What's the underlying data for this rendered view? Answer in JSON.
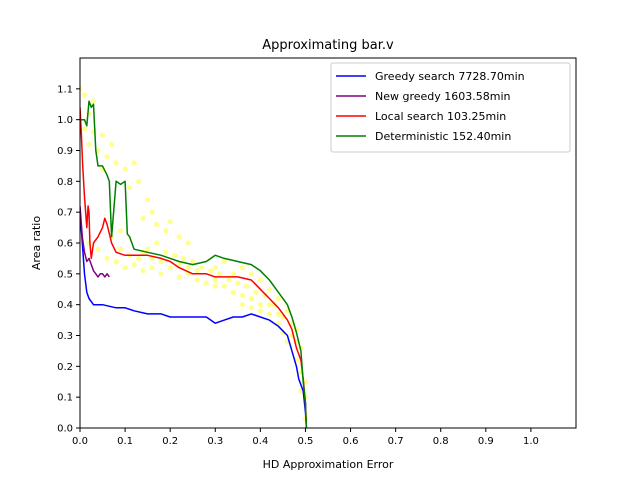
{
  "chart_data": {
    "type": "line",
    "title": "Approximating bar.v",
    "xlabel": "HD Approximation Error",
    "ylabel": "Area ratio",
    "xlim": [
      0.0,
      1.1
    ],
    "ylim": [
      0.0,
      1.2
    ],
    "xticks": [
      "0.0",
      "0.1",
      "0.2",
      "0.3",
      "0.4",
      "0.5",
      "0.6",
      "0.7",
      "0.8",
      "0.9",
      "1.0"
    ],
    "yticks": [
      "0.0",
      "0.1",
      "0.2",
      "0.3",
      "0.4",
      "0.5",
      "0.6",
      "0.7",
      "0.8",
      "0.9",
      "1.0",
      "1.1"
    ],
    "grid": false,
    "legend_position": "top-right",
    "series": [
      {
        "name": "Greedy search 7728.70min",
        "color": "#0000ff",
        "points": [
          [
            0.0,
            0.7
          ],
          [
            0.005,
            0.6
          ],
          [
            0.01,
            0.5
          ],
          [
            0.015,
            0.44
          ],
          [
            0.02,
            0.42
          ],
          [
            0.03,
            0.4
          ],
          [
            0.05,
            0.4
          ],
          [
            0.08,
            0.39
          ],
          [
            0.1,
            0.39
          ],
          [
            0.12,
            0.38
          ],
          [
            0.15,
            0.37
          ],
          [
            0.18,
            0.37
          ],
          [
            0.2,
            0.36
          ],
          [
            0.25,
            0.36
          ],
          [
            0.28,
            0.36
          ],
          [
            0.29,
            0.35
          ],
          [
            0.3,
            0.34
          ],
          [
            0.32,
            0.35
          ],
          [
            0.34,
            0.36
          ],
          [
            0.36,
            0.36
          ],
          [
            0.38,
            0.37
          ],
          [
            0.4,
            0.36
          ],
          [
            0.42,
            0.35
          ],
          [
            0.44,
            0.33
          ],
          [
            0.46,
            0.3
          ],
          [
            0.47,
            0.25
          ],
          [
            0.48,
            0.2
          ],
          [
            0.485,
            0.16
          ],
          [
            0.49,
            0.14
          ],
          [
            0.495,
            0.12
          ],
          [
            0.5,
            0.05
          ],
          [
            0.502,
            0.0
          ]
        ]
      },
      {
        "name": "New greedy 1603.58min",
        "color": "#800080",
        "points": [
          [
            0.0,
            0.72
          ],
          [
            0.005,
            0.62
          ],
          [
            0.01,
            0.57
          ],
          [
            0.015,
            0.54
          ],
          [
            0.02,
            0.55
          ],
          [
            0.025,
            0.53
          ],
          [
            0.03,
            0.51
          ],
          [
            0.035,
            0.5
          ],
          [
            0.04,
            0.49
          ],
          [
            0.045,
            0.5
          ],
          [
            0.05,
            0.5
          ],
          [
            0.055,
            0.49
          ],
          [
            0.06,
            0.5
          ],
          [
            0.065,
            0.49
          ]
        ]
      },
      {
        "name": "Local search 103.25min",
        "color": "#ff0000",
        "points": [
          [
            0.0,
            1.04
          ],
          [
            0.003,
            0.95
          ],
          [
            0.006,
            0.85
          ],
          [
            0.01,
            0.75
          ],
          [
            0.015,
            0.65
          ],
          [
            0.018,
            0.72
          ],
          [
            0.02,
            0.7
          ],
          [
            0.022,
            0.6
          ],
          [
            0.025,
            0.55
          ],
          [
            0.03,
            0.6
          ],
          [
            0.04,
            0.62
          ],
          [
            0.05,
            0.65
          ],
          [
            0.055,
            0.68
          ],
          [
            0.06,
            0.66
          ],
          [
            0.07,
            0.6
          ],
          [
            0.08,
            0.57
          ],
          [
            0.1,
            0.56
          ],
          [
            0.12,
            0.56
          ],
          [
            0.15,
            0.56
          ],
          [
            0.18,
            0.55
          ],
          [
            0.2,
            0.54
          ],
          [
            0.22,
            0.52
          ],
          [
            0.25,
            0.5
          ],
          [
            0.28,
            0.5
          ],
          [
            0.3,
            0.49
          ],
          [
            0.32,
            0.49
          ],
          [
            0.35,
            0.49
          ],
          [
            0.38,
            0.48
          ],
          [
            0.4,
            0.45
          ],
          [
            0.42,
            0.42
          ],
          [
            0.44,
            0.39
          ],
          [
            0.46,
            0.35
          ],
          [
            0.47,
            0.32
          ],
          [
            0.48,
            0.26
          ],
          [
            0.49,
            0.22
          ],
          [
            0.495,
            0.16
          ],
          [
            0.5,
            0.08
          ],
          [
            0.502,
            0.0
          ]
        ]
      },
      {
        "name": "Deterministic 152.40min",
        "color": "#008000",
        "points": [
          [
            0.0,
            1.0
          ],
          [
            0.01,
            1.0
          ],
          [
            0.015,
            0.98
          ],
          [
            0.02,
            1.06
          ],
          [
            0.025,
            1.04
          ],
          [
            0.03,
            1.05
          ],
          [
            0.035,
            0.9
          ],
          [
            0.04,
            0.85
          ],
          [
            0.05,
            0.85
          ],
          [
            0.06,
            0.82
          ],
          [
            0.065,
            0.8
          ],
          [
            0.07,
            0.62
          ],
          [
            0.08,
            0.8
          ],
          [
            0.09,
            0.79
          ],
          [
            0.1,
            0.8
          ],
          [
            0.105,
            0.63
          ],
          [
            0.11,
            0.62
          ],
          [
            0.12,
            0.58
          ],
          [
            0.15,
            0.57
          ],
          [
            0.18,
            0.56
          ],
          [
            0.2,
            0.55
          ],
          [
            0.22,
            0.54
          ],
          [
            0.25,
            0.53
          ],
          [
            0.28,
            0.54
          ],
          [
            0.3,
            0.56
          ],
          [
            0.32,
            0.55
          ],
          [
            0.35,
            0.54
          ],
          [
            0.38,
            0.53
          ],
          [
            0.4,
            0.51
          ],
          [
            0.42,
            0.48
          ],
          [
            0.44,
            0.44
          ],
          [
            0.46,
            0.4
          ],
          [
            0.47,
            0.36
          ],
          [
            0.48,
            0.31
          ],
          [
            0.49,
            0.25
          ],
          [
            0.495,
            0.15
          ],
          [
            0.5,
            0.08
          ],
          [
            0.502,
            0.0
          ]
        ]
      }
    ],
    "background_points": {
      "color": "#ffff00",
      "points": [
        [
          0.0,
          1.1
        ],
        [
          0.01,
          1.08
        ],
        [
          0.02,
          1.02
        ],
        [
          0.03,
          1.06
        ],
        [
          0.01,
          0.97
        ],
        [
          0.02,
          0.92
        ],
        [
          0.03,
          0.96
        ],
        [
          0.04,
          0.9
        ],
        [
          0.05,
          0.95
        ],
        [
          0.06,
          0.88
        ],
        [
          0.07,
          0.92
        ],
        [
          0.05,
          0.84
        ],
        [
          0.08,
          0.86
        ],
        [
          0.1,
          0.84
        ],
        [
          0.12,
          0.86
        ],
        [
          0.11,
          0.78
        ],
        [
          0.13,
          0.8
        ],
        [
          0.15,
          0.74
        ],
        [
          0.16,
          0.7
        ],
        [
          0.14,
          0.68
        ],
        [
          0.17,
          0.66
        ],
        [
          0.19,
          0.64
        ],
        [
          0.2,
          0.67
        ],
        [
          0.22,
          0.62
        ],
        [
          0.24,
          0.6
        ],
        [
          0.02,
          0.6
        ],
        [
          0.04,
          0.58
        ],
        [
          0.06,
          0.55
        ],
        [
          0.08,
          0.54
        ],
        [
          0.1,
          0.52
        ],
        [
          0.12,
          0.53
        ],
        [
          0.14,
          0.51
        ],
        [
          0.16,
          0.52
        ],
        [
          0.18,
          0.5
        ],
        [
          0.2,
          0.52
        ],
        [
          0.22,
          0.49
        ],
        [
          0.24,
          0.5
        ],
        [
          0.26,
          0.48
        ],
        [
          0.28,
          0.47
        ],
        [
          0.3,
          0.46
        ],
        [
          0.32,
          0.46
        ],
        [
          0.34,
          0.44
        ],
        [
          0.36,
          0.43
        ],
        [
          0.38,
          0.42
        ],
        [
          0.4,
          0.4
        ],
        [
          0.42,
          0.37
        ],
        [
          0.44,
          0.34
        ],
        [
          0.46,
          0.28
        ],
        [
          0.48,
          0.22
        ],
        [
          0.5,
          0.1
        ],
        [
          0.3,
          0.52
        ],
        [
          0.32,
          0.54
        ],
        [
          0.34,
          0.5
        ],
        [
          0.36,
          0.52
        ],
        [
          0.38,
          0.5
        ],
        [
          0.4,
          0.48
        ],
        [
          0.42,
          0.45
        ],
        [
          0.44,
          0.42
        ],
        [
          0.46,
          0.38
        ],
        [
          0.48,
          0.32
        ],
        [
          0.49,
          0.18
        ],
        [
          0.5,
          0.03
        ],
        [
          0.15,
          0.58
        ],
        [
          0.17,
          0.6
        ],
        [
          0.19,
          0.57
        ],
        [
          0.21,
          0.56
        ],
        [
          0.23,
          0.55
        ],
        [
          0.25,
          0.54
        ],
        [
          0.27,
          0.52
        ],
        [
          0.29,
          0.51
        ],
        [
          0.31,
          0.5
        ],
        [
          0.33,
          0.48
        ],
        [
          0.35,
          0.47
        ],
        [
          0.37,
          0.46
        ],
        [
          0.39,
          0.44
        ],
        [
          0.41,
          0.43
        ],
        [
          0.43,
          0.4
        ],
        [
          0.45,
          0.36
        ],
        [
          0.47,
          0.3
        ],
        [
          0.49,
          0.26
        ],
        [
          0.5,
          0.15
        ],
        [
          0.09,
          0.58
        ],
        [
          0.11,
          0.56
        ],
        [
          0.13,
          0.55
        ],
        [
          0.07,
          0.62
        ],
        [
          0.09,
          0.64
        ],
        [
          0.45,
          0.31
        ],
        [
          0.47,
          0.34
        ],
        [
          0.48,
          0.28
        ],
        [
          0.49,
          0.12
        ],
        [
          0.4,
          0.38
        ],
        [
          0.42,
          0.4
        ],
        [
          0.44,
          0.37
        ],
        [
          0.36,
          0.4
        ],
        [
          0.38,
          0.39
        ],
        [
          0.3,
          0.48
        ],
        [
          0.26,
          0.51
        ],
        [
          0.24,
          0.52
        ],
        [
          0.22,
          0.53
        ],
        [
          0.18,
          0.54
        ],
        [
          0.16,
          0.55
        ],
        [
          0.14,
          0.57
        ]
      ]
    }
  }
}
